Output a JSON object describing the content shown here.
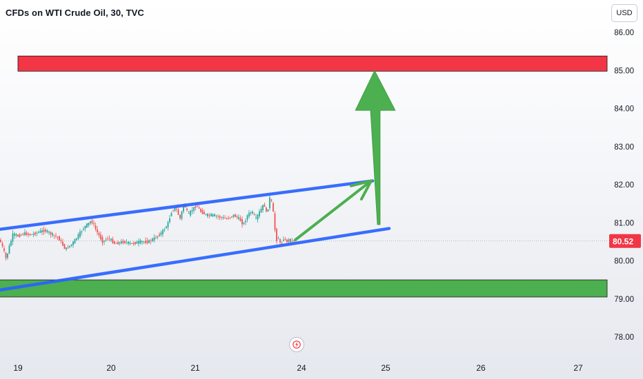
{
  "header": {
    "title": "CFDs on WTI Crude Oil, 30, TVC",
    "currency": "USD"
  },
  "colors": {
    "up": "#26a69a",
    "down": "#ef5350",
    "channel": "#2962ff",
    "arrow": "#4caf50",
    "resistance_zone": "#f23645",
    "support_zone": "#4caf50",
    "price_label": "#f23645"
  },
  "icons": {
    "flash": "lightning-icon"
  },
  "chart_data": {
    "type": "candlestick",
    "symbol": "CFDs on WTI Crude Oil",
    "interval": "30",
    "source": "TVC",
    "ylim": [
      77.4,
      86.4
    ],
    "y_ticks": [
      "86.00",
      "85.00",
      "84.00",
      "83.00",
      "82.00",
      "81.00",
      "80.00",
      "79.00",
      "78.00"
    ],
    "x_ticks": [
      "19",
      "20",
      "21",
      "24",
      "25",
      "26",
      "27"
    ],
    "last_price": "80.52",
    "price_path": [
      [
        0,
        80.6
      ],
      [
        6,
        80.3
      ],
      [
        10,
        80.05
      ],
      [
        15,
        80.4
      ],
      [
        20,
        80.7
      ],
      [
        28,
        80.65
      ],
      [
        36,
        80.72
      ],
      [
        46,
        80.68
      ],
      [
        56,
        80.75
      ],
      [
        66,
        80.8
      ],
      [
        76,
        80.7
      ],
      [
        86,
        80.6
      ],
      [
        96,
        80.3
      ],
      [
        106,
        80.45
      ],
      [
        116,
        80.7
      ],
      [
        124,
        80.9
      ],
      [
        134,
        81.05
      ],
      [
        142,
        80.75
      ],
      [
        150,
        80.5
      ],
      [
        158,
        80.6
      ],
      [
        168,
        80.45
      ],
      [
        180,
        80.5
      ],
      [
        192,
        80.45
      ],
      [
        204,
        80.5
      ],
      [
        216,
        80.5
      ],
      [
        226,
        80.6
      ],
      [
        236,
        80.75
      ],
      [
        244,
        80.95
      ],
      [
        250,
        81.3
      ],
      [
        256,
        81.4
      ],
      [
        262,
        81.1
      ],
      [
        268,
        81.5
      ],
      [
        274,
        81.2
      ],
      [
        280,
        81.35
      ],
      [
        286,
        81.45
      ],
      [
        292,
        81.3
      ],
      [
        300,
        81.2
      ],
      [
        310,
        81.2
      ],
      [
        320,
        81.15
      ],
      [
        330,
        81.1
      ],
      [
        340,
        81.2
      ],
      [
        348,
        81.1
      ],
      [
        354,
        80.95
      ],
      [
        360,
        81.2
      ],
      [
        366,
        81.3
      ],
      [
        372,
        81.1
      ],
      [
        378,
        81.3
      ],
      [
        384,
        81.5
      ],
      [
        388,
        81.2
      ],
      [
        392,
        81.65
      ],
      [
        396,
        81.5
      ],
      [
        399,
        80.9
      ],
      [
        402,
        80.55
      ],
      [
        405,
        80.6
      ],
      [
        408,
        80.4
      ],
      [
        412,
        80.6
      ],
      [
        416,
        80.5
      ],
      [
        420,
        80.55
      ],
      [
        424,
        80.5
      ],
      [
        428,
        80.55
      ]
    ],
    "channel_upper": [
      [
        -12,
        80.8
      ],
      [
        540,
        82.1
      ]
    ],
    "channel_lower": [
      [
        -12,
        79.2
      ],
      [
        564,
        80.85
      ]
    ],
    "resistance_zone": [
      84.98,
      85.38
    ],
    "support_zone": [
      79.05,
      79.5
    ],
    "arrows": [
      {
        "from": [
          428,
          80.55
        ],
        "to": [
          538,
          82.1
        ]
      },
      {
        "from": [
          549,
          80.95
        ],
        "to": [
          543,
          85.0
        ]
      }
    ]
  }
}
